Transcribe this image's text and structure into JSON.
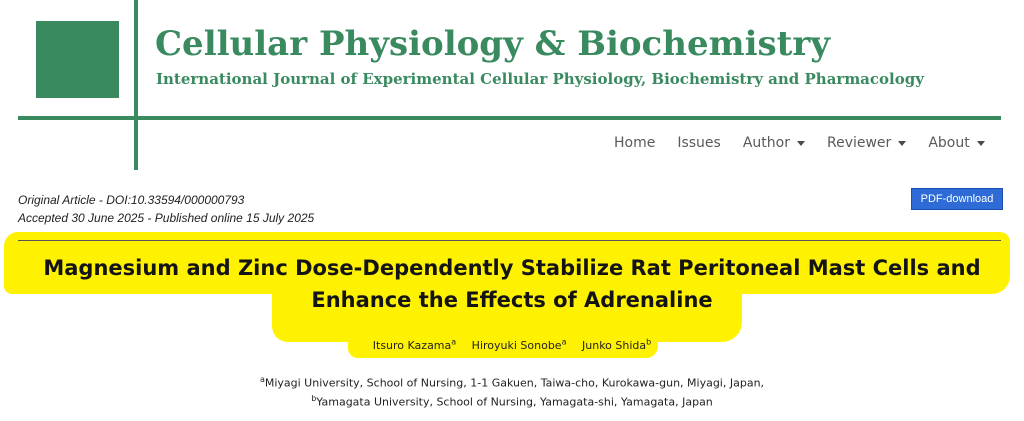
{
  "header": {
    "title": "Cellular Physiology & Biochemistry",
    "subtitle": "International Journal of Experimental Cellular Physiology, Biochemistry and Pharmacology"
  },
  "nav": {
    "items": [
      {
        "label": "Home",
        "dropdown": false
      },
      {
        "label": "Issues",
        "dropdown": false
      },
      {
        "label": "Author",
        "dropdown": true
      },
      {
        "label": "Reviewer",
        "dropdown": true
      },
      {
        "label": "About",
        "dropdown": true
      }
    ]
  },
  "article": {
    "type_doi": "Original Article - DOI:10.33594/000000793",
    "dates": "Accepted 30 June 2025 - Published online 15 July 2025",
    "pdf_label": "PDF-download",
    "title_line1": "Magnesium and Zinc Dose-Dependently Stabilize Rat Peritoneal Mast Cells and",
    "title_line2": "Enhance the Effects of Adrenaline",
    "authors": [
      {
        "name": "Itsuro Kazama",
        "sup": "a"
      },
      {
        "name": "Hiroyuki Sonobe",
        "sup": "a"
      },
      {
        "name": "Junko Shida",
        "sup": "b"
      }
    ],
    "affiliations": [
      {
        "sup": "a",
        "text": "Miyagi University, School of Nursing, 1-1 Gakuen, Taiwa-cho, Kurokawa-gun, Miyagi, Japan,"
      },
      {
        "sup": "b",
        "text": "Yamagata University, School of Nursing, Yamagata-shi, Yamagata, Japan"
      }
    ]
  },
  "colors": {
    "brand_green": "#3a8a60",
    "highlight_yellow": "#fff200",
    "button_blue": "#2e6bd6"
  }
}
